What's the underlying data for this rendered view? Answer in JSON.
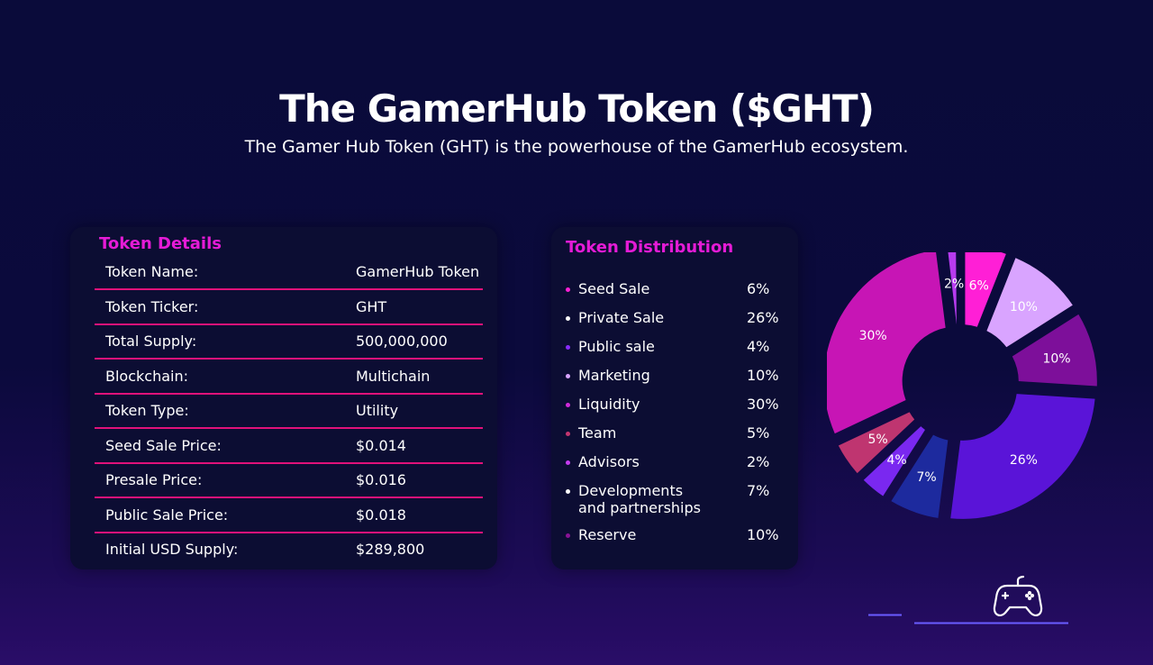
{
  "header": {
    "title": "The GamerHub Token ($GHT)",
    "subtitle": "The Gamer Hub Token (GHT) is the powerhouse of the GamerHub ecosystem."
  },
  "token_details": {
    "title": "Token Details",
    "rows": [
      {
        "label": "Token Name:",
        "value": "GamerHub Token"
      },
      {
        "label": "Token Ticker:",
        "value": "GHT"
      },
      {
        "label": "Total Supply:",
        "value": "500,000,000"
      },
      {
        "label": "Blockchain:",
        "value": "Multichain"
      },
      {
        "label": "Token Type:",
        "value": "Utility"
      },
      {
        "label": "Seed Sale Price:",
        "value": "$0.014"
      },
      {
        "label": "Presale Price:",
        "value": "$0.016"
      },
      {
        "label": "Public Sale Price:",
        "value": "$0.018"
      },
      {
        "label": "Initial USD Supply:",
        "value": "$289,800"
      }
    ]
  },
  "token_distribution": {
    "title": "Token Distribution",
    "items": [
      {
        "name": "Seed Sale",
        "pct": "6%",
        "color": "#ff1fd6"
      },
      {
        "name": "Private Sale",
        "pct": "26%",
        "color": "#ffffff"
      },
      {
        "name": "Public sale",
        "pct": "4%",
        "color": "#8a2cff"
      },
      {
        "name": "Marketing",
        "pct": "10%",
        "color": "#d9a4ff"
      },
      {
        "name": "Liquidity",
        "pct": "30%",
        "color": "#d02ad9"
      },
      {
        "name": "Team",
        "pct": "5%",
        "color": "#c4356f"
      },
      {
        "name": "Advisors",
        "pct": "2%",
        "color": "#c53cf0"
      },
      {
        "name": "Developments\nand partnerships",
        "pct": "7%",
        "color": "#ffffff"
      },
      {
        "name": "Reserve",
        "pct": "10%",
        "color": "#8a1396"
      }
    ]
  },
  "chart_data": {
    "type": "pie",
    "categories": [
      "Seed Sale",
      "Marketing",
      "Reserve",
      "Private Sale",
      "Developments and partnerships",
      "Public sale",
      "Team",
      "Liquidity",
      "Advisors"
    ],
    "values": [
      6,
      10,
      10,
      26,
      7,
      4,
      5,
      30,
      2
    ],
    "labels": [
      "6%",
      "10%",
      "10%",
      "26%",
      "7%",
      "4%",
      "5%",
      "30%",
      "2%"
    ],
    "colors": [
      "#ff1fd6",
      "#d9a4ff",
      "#7d0f9a",
      "#5a14d8",
      "#1d2a9e",
      "#7a28f0",
      "#bf3570",
      "#c715b5",
      "#b73bef"
    ],
    "donut": true
  },
  "icons": {
    "decoration": "gamepad-icon"
  }
}
